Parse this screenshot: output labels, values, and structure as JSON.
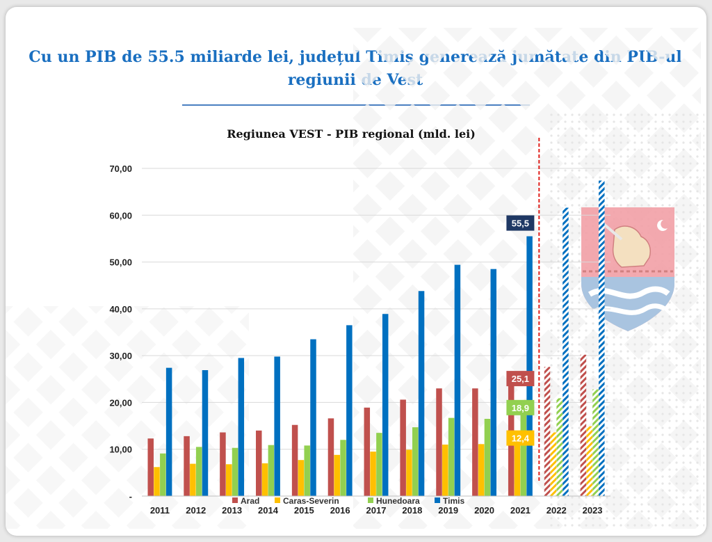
{
  "page": {
    "headline": "Cu un PIB de 55.5 miliarde lei,  județul Timiș generează jumătate din PIB-ul regiunii de Vest"
  },
  "colors": {
    "arad": "#c0504d",
    "caras": "#ffc000",
    "hunedoara": "#92d050",
    "timis": "#0070c0",
    "forecast_line": "#e0201c",
    "timis_label_bg": "#1f3864"
  },
  "chart_data": {
    "type": "bar",
    "title": "Regiunea VEST - PIB regional (mld. lei)",
    "xlabel": "",
    "ylabel": "",
    "ylim": [
      0,
      70
    ],
    "yticks": [
      0,
      10,
      20,
      30,
      40,
      50,
      60,
      70
    ],
    "ytick_labels": [
      "-",
      "10,00",
      "20,00",
      "30,00",
      "40,00",
      "50,00",
      "60,00",
      "70,00"
    ],
    "categories": [
      "2011",
      "2012",
      "2013",
      "2014",
      "2015",
      "2016",
      "2017",
      "2018",
      "2019",
      "2020",
      "2021",
      "2022",
      "2023"
    ],
    "forecast_from": "2022",
    "grid": true,
    "legend_position": "bottom",
    "series": [
      {
        "name": "Arad",
        "color": "#c0504d",
        "values": [
          12.3,
          12.8,
          13.6,
          14.0,
          15.2,
          16.6,
          18.9,
          20.6,
          23.0,
          23.0,
          25.1,
          27.6,
          30.2
        ]
      },
      {
        "name": "Caras-Severin",
        "color": "#ffc000",
        "values": [
          6.2,
          6.9,
          6.8,
          7.0,
          7.7,
          8.8,
          9.5,
          9.9,
          11.0,
          11.1,
          12.4,
          13.6,
          14.9
        ]
      },
      {
        "name": "Hunedoara",
        "color": "#92d050",
        "values": [
          9.1,
          10.5,
          10.3,
          10.9,
          10.8,
          12.0,
          13.5,
          14.7,
          16.7,
          16.5,
          18.9,
          20.9,
          22.8
        ]
      },
      {
        "name": "Timis",
        "color": "#0070c0",
        "values": [
          27.4,
          26.9,
          29.5,
          29.8,
          33.5,
          36.5,
          38.9,
          43.8,
          49.4,
          48.5,
          55.5,
          61.6,
          67.4
        ]
      }
    ],
    "data_labels": [
      {
        "series": "Timis",
        "category": "2021",
        "text": "55,5"
      },
      {
        "series": "Arad",
        "category": "2021",
        "text": "25,1"
      },
      {
        "series": "Hunedoara",
        "category": "2021",
        "text": "18,9"
      },
      {
        "series": "Caras-Severin",
        "category": "2021",
        "text": "12,4"
      }
    ]
  }
}
